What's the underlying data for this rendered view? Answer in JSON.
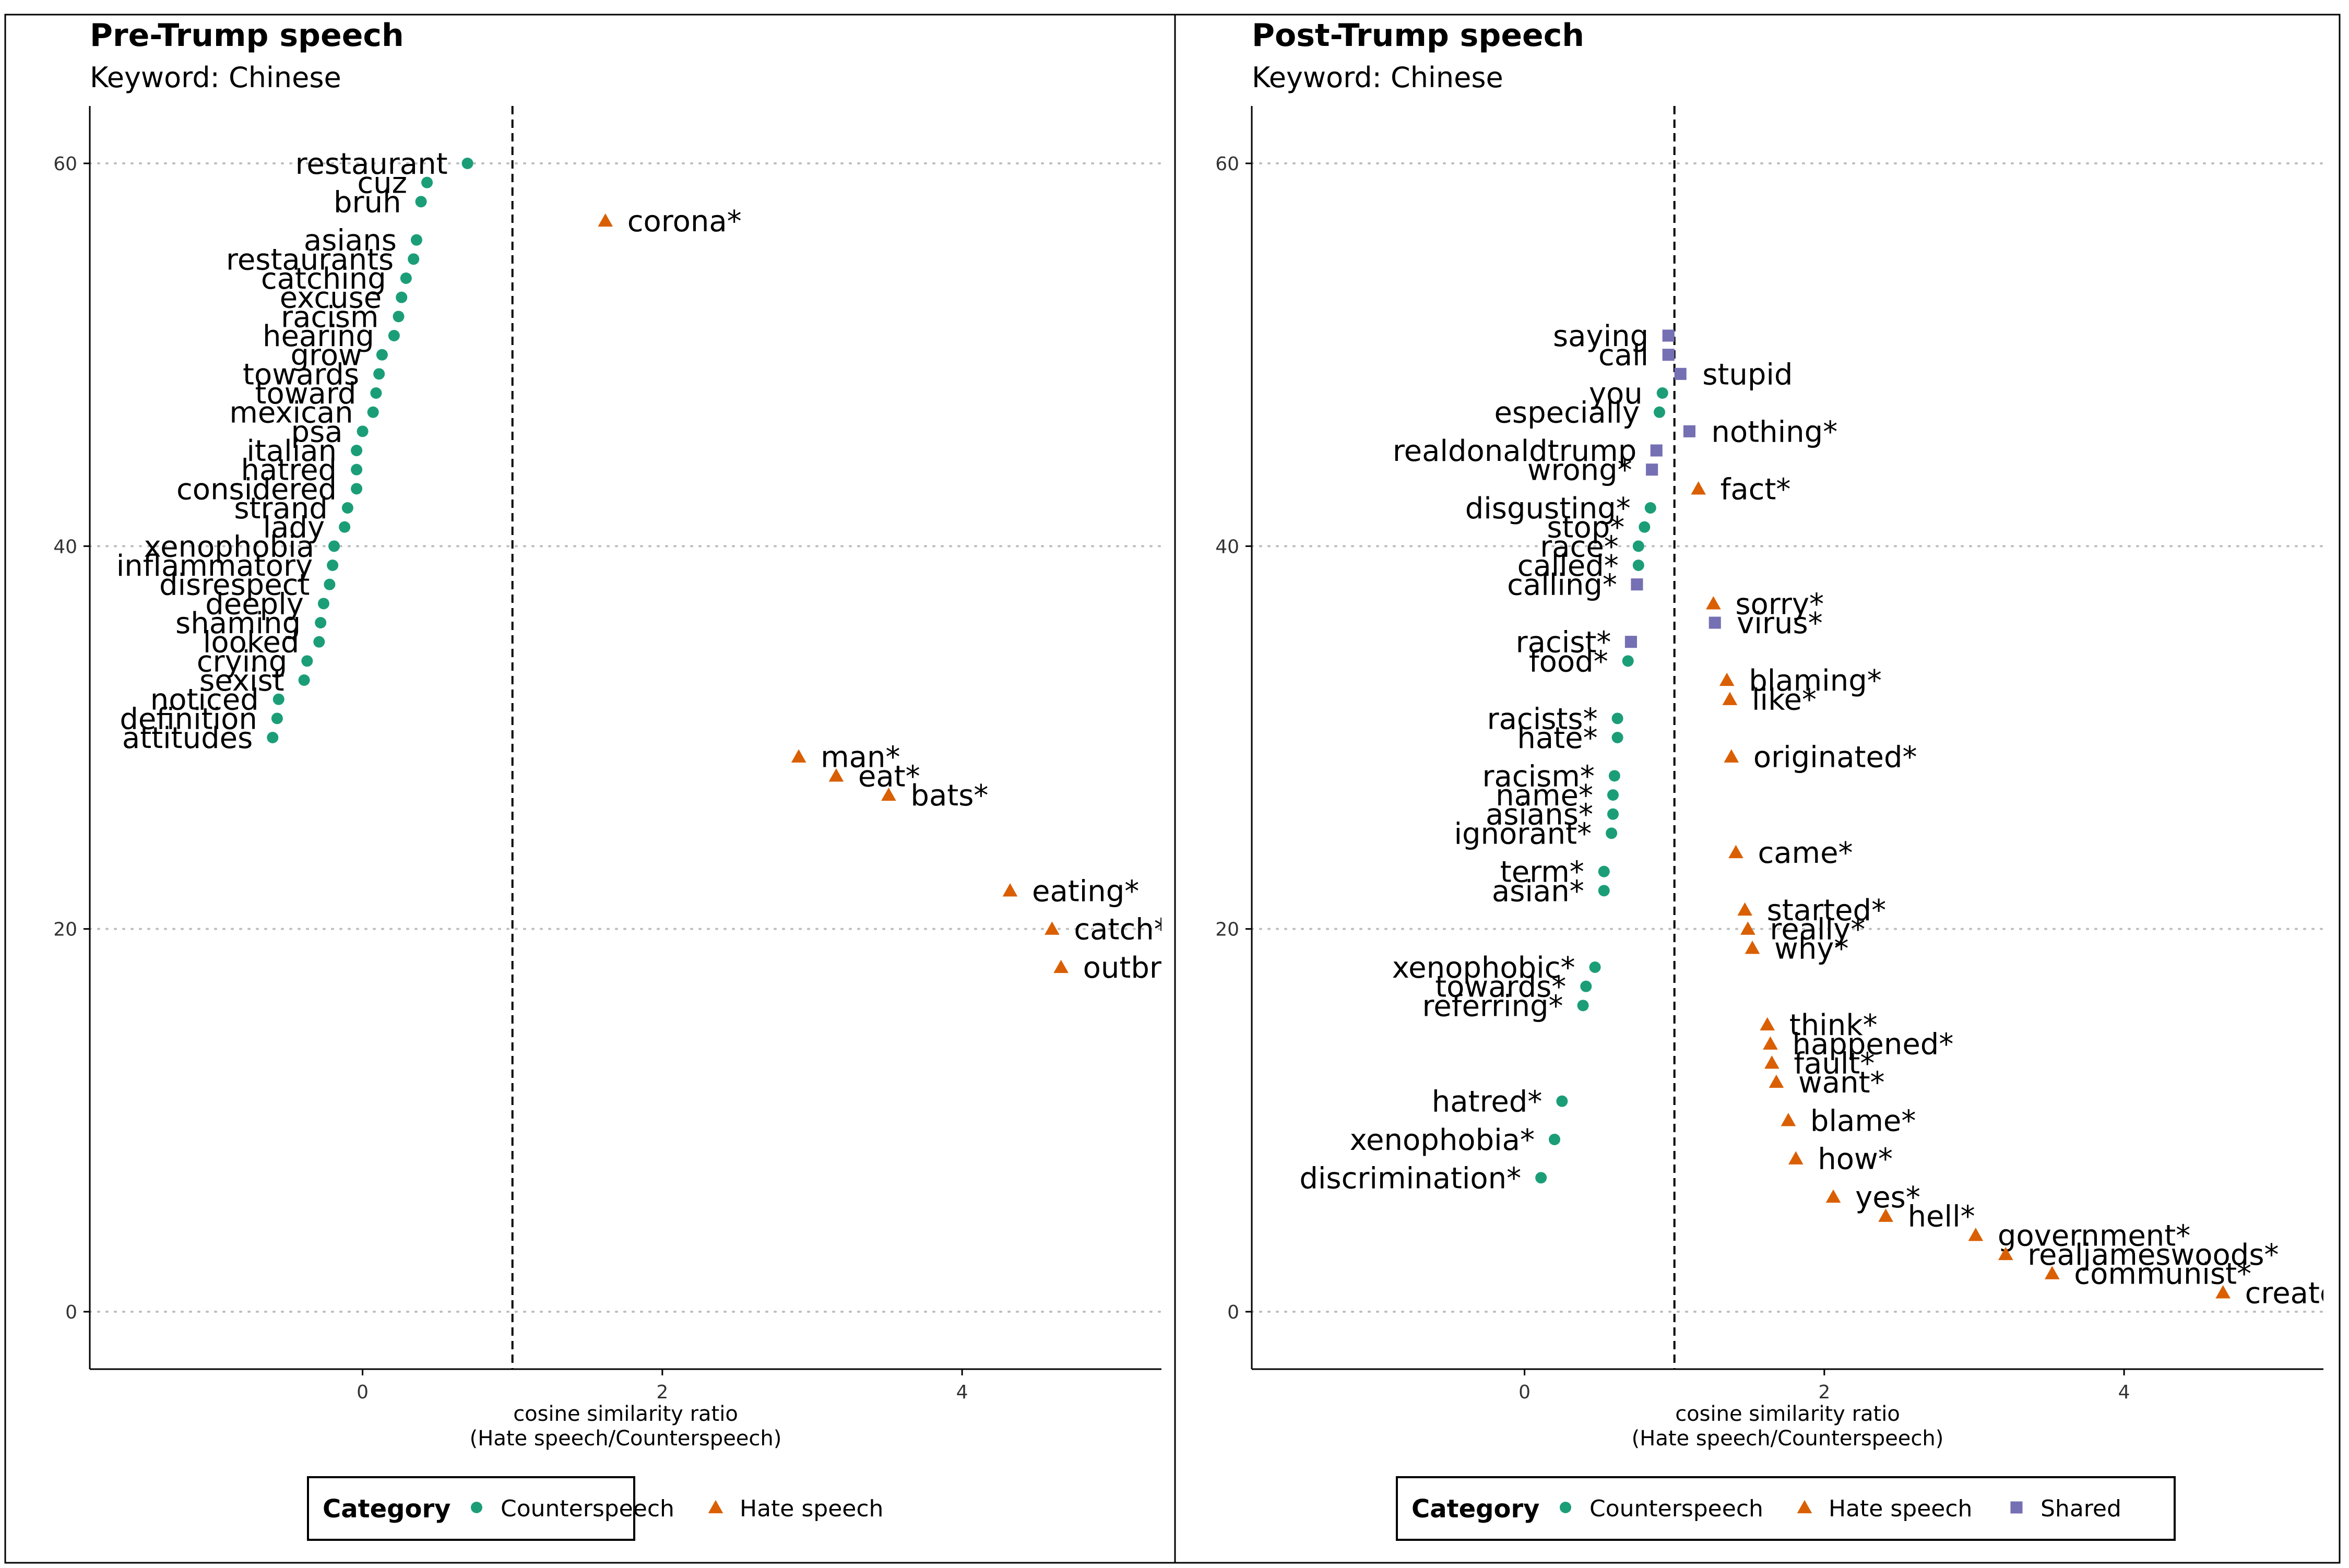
{
  "colors": {
    "counterspeech": "#1b9e77",
    "hate_speech": "#d95f02",
    "shared": "#7570b3",
    "grid": "#bdbdbd",
    "reference_line": "#000000"
  },
  "chart_data": [
    {
      "type": "scatter",
      "title": "Pre-Trump speech",
      "subtitle": "Keyword: Chinese",
      "xlabel": "cosine similarity ratio\n(Hate speech/Counterspeech)",
      "xlim": [
        -1.82,
        5.33
      ],
      "ylim": [
        -3,
        63
      ],
      "x_ticks": [
        0,
        2,
        4
      ],
      "y_ticks": [
        0,
        20,
        40,
        60
      ],
      "reference_x": 1,
      "grid": "horizontal dotted",
      "legend_title": "Category",
      "legend_position": "bottom",
      "legend": [
        {
          "label": "Counterspeech",
          "category": "counterspeech"
        },
        {
          "label": "Hate speech",
          "category": "hate_speech"
        }
      ],
      "points": [
        {
          "label": "restaurant",
          "x": 0.7,
          "y": 60,
          "category": "counterspeech"
        },
        {
          "label": "cuz",
          "x": 0.43,
          "y": 59,
          "category": "counterspeech"
        },
        {
          "label": "bruh",
          "x": 0.39,
          "y": 58,
          "category": "counterspeech"
        },
        {
          "label": "corona*",
          "x": 1.62,
          "y": 57,
          "category": "hate_speech"
        },
        {
          "label": "asians",
          "x": 0.36,
          "y": 56,
          "category": "counterspeech"
        },
        {
          "label": "restaurants",
          "x": 0.34,
          "y": 55,
          "category": "counterspeech"
        },
        {
          "label": "catching",
          "x": 0.29,
          "y": 54,
          "category": "counterspeech"
        },
        {
          "label": "excuse",
          "x": 0.26,
          "y": 53,
          "category": "counterspeech"
        },
        {
          "label": "racism",
          "x": 0.24,
          "y": 52,
          "category": "counterspeech"
        },
        {
          "label": "hearing",
          "x": 0.21,
          "y": 51,
          "category": "counterspeech"
        },
        {
          "label": "grow",
          "x": 0.13,
          "y": 50,
          "category": "counterspeech"
        },
        {
          "label": "towards",
          "x": 0.11,
          "y": 49,
          "category": "counterspeech"
        },
        {
          "label": "toward",
          "x": 0.09,
          "y": 48,
          "category": "counterspeech"
        },
        {
          "label": "mexican",
          "x": 0.07,
          "y": 47,
          "category": "counterspeech"
        },
        {
          "label": "psa",
          "x": 0.0,
          "y": 46,
          "category": "counterspeech"
        },
        {
          "label": "italian",
          "x": -0.04,
          "y": 45,
          "category": "counterspeech"
        },
        {
          "label": "hatred",
          "x": -0.04,
          "y": 44,
          "category": "counterspeech"
        },
        {
          "label": "considered",
          "x": -0.04,
          "y": 43,
          "category": "counterspeech"
        },
        {
          "label": "strand",
          "x": -0.1,
          "y": 42,
          "category": "counterspeech"
        },
        {
          "label": "lady",
          "x": -0.12,
          "y": 41,
          "category": "counterspeech"
        },
        {
          "label": "xenophobia",
          "x": -0.19,
          "y": 40,
          "category": "counterspeech"
        },
        {
          "label": "inflammatory",
          "x": -0.2,
          "y": 39,
          "category": "counterspeech"
        },
        {
          "label": "disrespect",
          "x": -0.22,
          "y": 38,
          "category": "counterspeech"
        },
        {
          "label": "deeply",
          "x": -0.26,
          "y": 37,
          "category": "counterspeech"
        },
        {
          "label": "shaming",
          "x": -0.28,
          "y": 36,
          "category": "counterspeech"
        },
        {
          "label": "looked",
          "x": -0.29,
          "y": 35,
          "category": "counterspeech"
        },
        {
          "label": "crying",
          "x": -0.37,
          "y": 34,
          "category": "counterspeech"
        },
        {
          "label": "sexist",
          "x": -0.39,
          "y": 33,
          "category": "counterspeech"
        },
        {
          "label": "noticed",
          "x": -0.56,
          "y": 32,
          "category": "counterspeech"
        },
        {
          "label": "definition",
          "x": -0.57,
          "y": 31,
          "category": "counterspeech"
        },
        {
          "label": "attitudes",
          "x": -0.6,
          "y": 30,
          "category": "counterspeech"
        },
        {
          "label": "man*",
          "x": 2.91,
          "y": 29,
          "category": "hate_speech"
        },
        {
          "label": "eat*",
          "x": 3.16,
          "y": 28,
          "category": "hate_speech"
        },
        {
          "label": "bats*",
          "x": 3.51,
          "y": 27,
          "category": "hate_speech"
        },
        {
          "label": "eating*",
          "x": 4.32,
          "y": 22,
          "category": "hate_speech"
        },
        {
          "label": "catch*",
          "x": 4.6,
          "y": 20,
          "category": "hate_speech"
        },
        {
          "label": "outbreak*",
          "x": 4.66,
          "y": 18,
          "category": "hate_speech"
        }
      ]
    },
    {
      "type": "scatter",
      "title": "Post-Trump speech",
      "subtitle": "Keyword: Chinese",
      "xlabel": "cosine similarity ratio\n(Hate speech/Counterspeech)",
      "xlim": [
        -1.82,
        5.33
      ],
      "ylim": [
        -3,
        63
      ],
      "x_ticks": [
        0,
        2,
        4
      ],
      "y_ticks": [
        0,
        20,
        40,
        60
      ],
      "reference_x": 1,
      "grid": "horizontal dotted",
      "legend_title": "Category",
      "legend_position": "bottom",
      "legend": [
        {
          "label": "Counterspeech",
          "category": "counterspeech"
        },
        {
          "label": "Hate speech",
          "category": "hate_speech"
        },
        {
          "label": "Shared",
          "category": "shared"
        }
      ],
      "points": [
        {
          "label": "saying",
          "x": 0.96,
          "y": 51,
          "category": "shared"
        },
        {
          "label": "call",
          "x": 0.96,
          "y": 50,
          "category": "shared"
        },
        {
          "label": "stupid",
          "x": 1.04,
          "y": 49,
          "category": "shared"
        },
        {
          "label": "you",
          "x": 0.92,
          "y": 48,
          "category": "counterspeech"
        },
        {
          "label": "especially",
          "x": 0.9,
          "y": 47,
          "category": "counterspeech"
        },
        {
          "label": "nothing*",
          "x": 1.1,
          "y": 46,
          "category": "shared"
        },
        {
          "label": "realdonaldtrump",
          "x": 0.88,
          "y": 45,
          "category": "shared"
        },
        {
          "label": "wrong*",
          "x": 0.85,
          "y": 44,
          "category": "shared"
        },
        {
          "label": "fact*",
          "x": 1.16,
          "y": 43,
          "category": "hate_speech"
        },
        {
          "label": "disgusting*",
          "x": 0.84,
          "y": 42,
          "category": "counterspeech"
        },
        {
          "label": "stop*",
          "x": 0.8,
          "y": 41,
          "category": "counterspeech"
        },
        {
          "label": "race*",
          "x": 0.76,
          "y": 40,
          "category": "counterspeech"
        },
        {
          "label": "called*",
          "x": 0.76,
          "y": 39,
          "category": "counterspeech"
        },
        {
          "label": "calling*",
          "x": 0.75,
          "y": 38,
          "category": "shared"
        },
        {
          "label": "sorry*",
          "x": 1.26,
          "y": 37,
          "category": "hate_speech"
        },
        {
          "label": "virus*",
          "x": 1.27,
          "y": 36,
          "category": "shared"
        },
        {
          "label": "racist*",
          "x": 0.71,
          "y": 35,
          "category": "shared"
        },
        {
          "label": "food*",
          "x": 0.69,
          "y": 34,
          "category": "counterspeech"
        },
        {
          "label": "blaming*",
          "x": 1.35,
          "y": 33,
          "category": "hate_speech"
        },
        {
          "label": "like*",
          "x": 1.37,
          "y": 32,
          "category": "hate_speech"
        },
        {
          "label": "racists*",
          "x": 0.62,
          "y": 31,
          "category": "counterspeech"
        },
        {
          "label": "hate*",
          "x": 0.62,
          "y": 30,
          "category": "counterspeech"
        },
        {
          "label": "originated*",
          "x": 1.38,
          "y": 29,
          "category": "hate_speech"
        },
        {
          "label": "racism*",
          "x": 0.6,
          "y": 28,
          "category": "counterspeech"
        },
        {
          "label": "name*",
          "x": 0.59,
          "y": 27,
          "category": "counterspeech"
        },
        {
          "label": "asians*",
          "x": 0.59,
          "y": 26,
          "category": "counterspeech"
        },
        {
          "label": "ignorant*",
          "x": 0.58,
          "y": 25,
          "category": "counterspeech"
        },
        {
          "label": "came*",
          "x": 1.41,
          "y": 24,
          "category": "hate_speech"
        },
        {
          "label": "term*",
          "x": 0.53,
          "y": 23,
          "category": "counterspeech"
        },
        {
          "label": "asian*",
          "x": 0.53,
          "y": 22,
          "category": "counterspeech"
        },
        {
          "label": "started*",
          "x": 1.47,
          "y": 21,
          "category": "hate_speech"
        },
        {
          "label": "really*",
          "x": 1.49,
          "y": 20,
          "category": "hate_speech"
        },
        {
          "label": "why*",
          "x": 1.52,
          "y": 19,
          "category": "hate_speech"
        },
        {
          "label": "xenophobic*",
          "x": 0.47,
          "y": 18,
          "category": "counterspeech"
        },
        {
          "label": "towards*",
          "x": 0.41,
          "y": 17,
          "category": "counterspeech"
        },
        {
          "label": "referring*",
          "x": 0.39,
          "y": 16,
          "category": "counterspeech"
        },
        {
          "label": "think*",
          "x": 1.62,
          "y": 15,
          "category": "hate_speech"
        },
        {
          "label": "happened*",
          "x": 1.64,
          "y": 14,
          "category": "hate_speech"
        },
        {
          "label": "fault*",
          "x": 1.65,
          "y": 13,
          "category": "hate_speech"
        },
        {
          "label": "want*",
          "x": 1.68,
          "y": 12,
          "category": "hate_speech"
        },
        {
          "label": "hatred*",
          "x": 0.25,
          "y": 11,
          "category": "counterspeech"
        },
        {
          "label": "blame*",
          "x": 1.76,
          "y": 10,
          "category": "hate_speech"
        },
        {
          "label": "xenophobia*",
          "x": 0.2,
          "y": 9,
          "category": "counterspeech"
        },
        {
          "label": "how*",
          "x": 1.81,
          "y": 8,
          "category": "hate_speech"
        },
        {
          "label": "discrimination*",
          "x": 0.11,
          "y": 7,
          "category": "counterspeech"
        },
        {
          "label": "yes*",
          "x": 2.06,
          "y": 6,
          "category": "hate_speech"
        },
        {
          "label": "hell*",
          "x": 2.41,
          "y": 5,
          "category": "hate_speech"
        },
        {
          "label": "government*",
          "x": 3.01,
          "y": 4,
          "category": "hate_speech"
        },
        {
          "label": "realjameswoods*",
          "x": 3.21,
          "y": 3,
          "category": "hate_speech"
        },
        {
          "label": "communist*",
          "x": 3.52,
          "y": 2,
          "category": "hate_speech"
        },
        {
          "label": "created*",
          "x": 4.66,
          "y": 1,
          "category": "hate_speech"
        }
      ]
    }
  ]
}
